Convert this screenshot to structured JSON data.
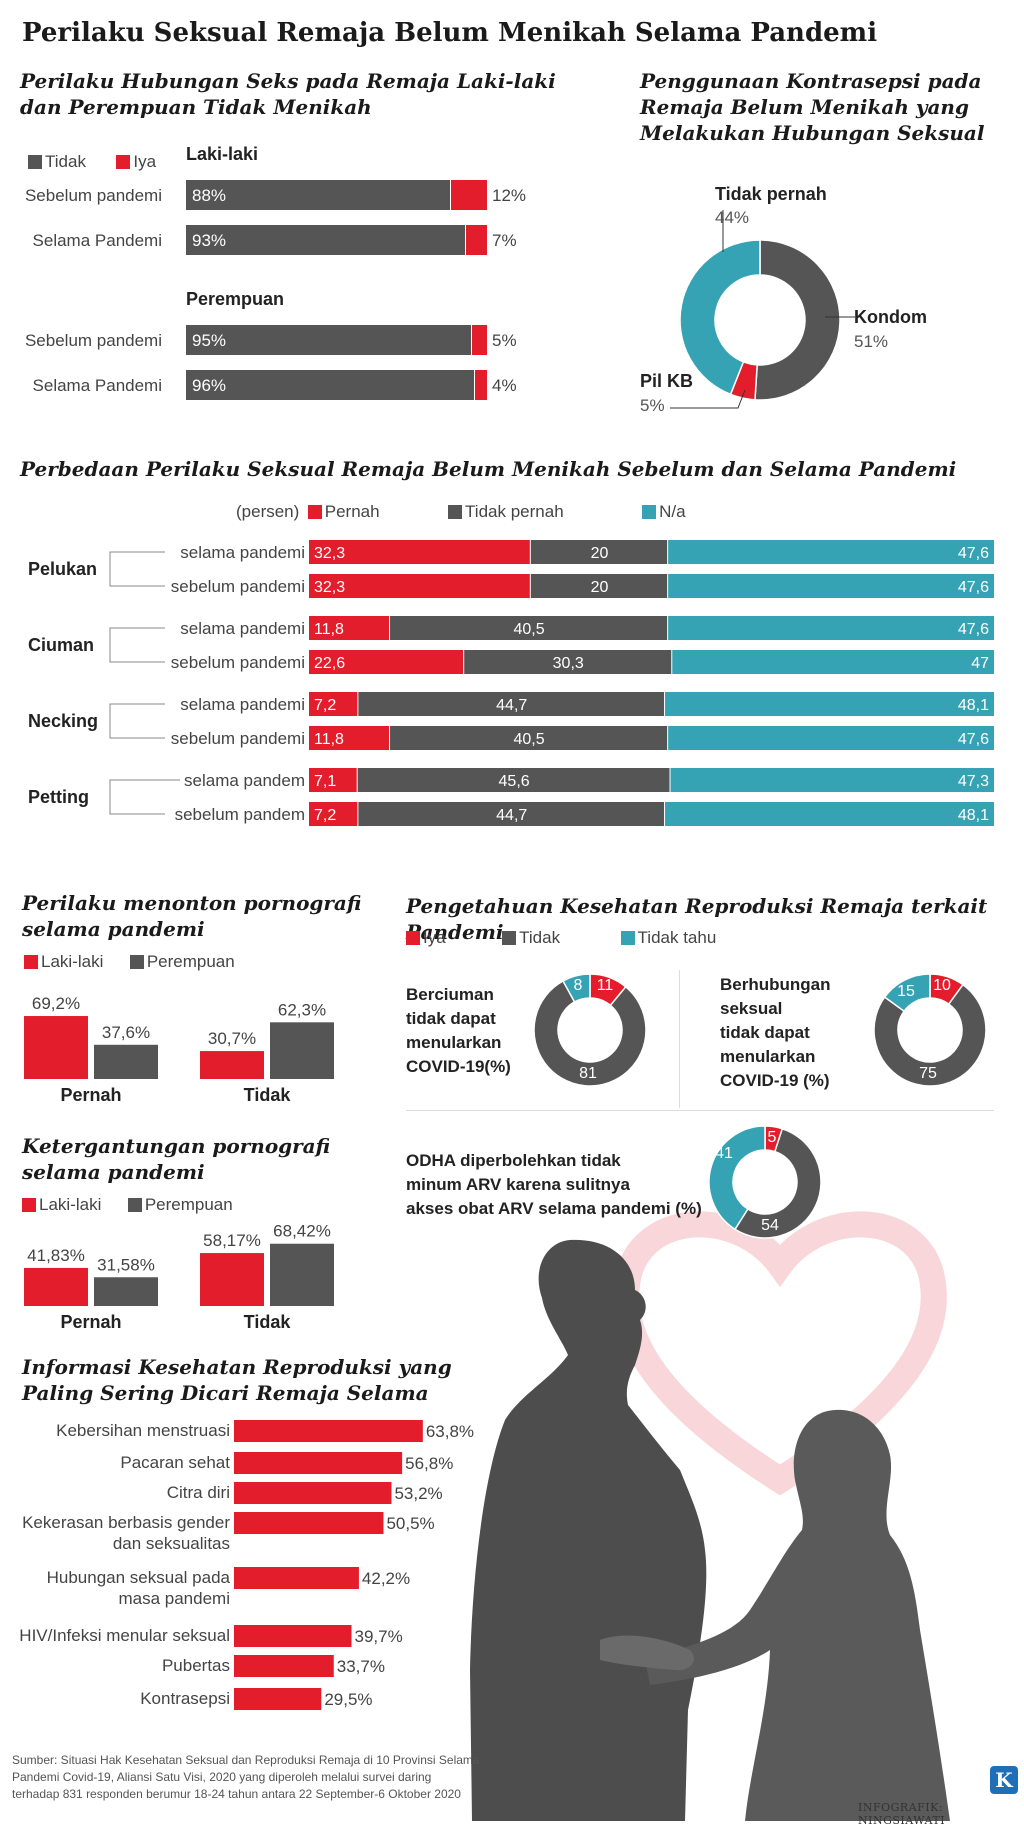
{
  "colors": {
    "red": "#e31d2b",
    "gray": "#555555",
    "teal": "#36a3b4",
    "text": "#333333"
  },
  "header": {
    "title": "Perilaku Seksual Remaja Belum Menikah Selama Pandemi"
  },
  "sec1": {
    "title_line1": "Perilaku Hubungan Seks pada Remaja Laki-laki",
    "title_line2": "dan Perempuan Tidak Menikah",
    "legend": [
      "Tidak",
      "Iya"
    ]
  },
  "sec2": {
    "title_line1": "Penggunaan Kontrasepsi pada",
    "title_line2": "Remaja Belum Menikah yang",
    "title_line3": "Melakukan Hubungan Seksual"
  },
  "sec3": {
    "title": "Perbedaan Perilaku Seksual Remaja Belum Menikah Sebelum dan Selama Pandemi",
    "unit": "(persen)",
    "legend": [
      "Pernah",
      "Tidak pernah",
      "N/a"
    ]
  },
  "sec4": {
    "title_line1": "Perilaku menonton pornografi",
    "title_line2": "selama pandemi",
    "legend": [
      "Laki-laki",
      "Perempuan"
    ]
  },
  "sec5": {
    "title_line1": "Ketergantungan pornografi",
    "title_line2": "selama pandemi",
    "legend": [
      "Laki-laki",
      "Perempuan"
    ]
  },
  "sec6": {
    "title": "Pengetahuan Kesehatan Reproduksi Remaja terkait Pandemi",
    "legend": [
      "Iya",
      "Tidak",
      "Tidak tahu"
    ]
  },
  "sec7": {
    "title_line1": "Informasi Kesehatan Reproduksi yang",
    "title_line2": "Paling Sering Dicari Remaja Selama"
  },
  "footer": {
    "source_line1": "Sumber: Situasi Hak Kesehatan Seksual dan Reproduksi Remaja di 10 Provinsi Selama",
    "source_line2": "Pandemi Covid-19, Aliansi Satu Visi, 2020 yang diperoleh melalui survei daring",
    "source_line3": "terhadap 831 responden berumur 18-24 tahun antara 22 September-6 Oktober 2020",
    "credit": "INFOGRAFIK: NINGSIAWATI",
    "logo": "K"
  },
  "chart_data": [
    {
      "id": "hubungan_seks",
      "type": "bar",
      "stacked": true,
      "orientation": "horizontal",
      "groups": [
        {
          "name": "Laki-laki",
          "rows": [
            {
              "label": "Sebelum pandemi",
              "tidak": 88,
              "iya": 12,
              "tidak_label": "88%",
              "iya_label": "12%"
            },
            {
              "label": "Selama Pandemi",
              "tidak": 93,
              "iya": 7,
              "tidak_label": "93%",
              "iya_label": "7%"
            }
          ]
        },
        {
          "name": "Perempuan",
          "rows": [
            {
              "label": "Sebelum pandemi",
              "tidak": 95,
              "iya": 5,
              "tidak_label": "95%",
              "iya_label": "5%"
            },
            {
              "label": "Selama Pandemi",
              "tidak": 96,
              "iya": 4,
              "tidak_label": "96%",
              "iya_label": "4%"
            }
          ]
        }
      ]
    },
    {
      "id": "kontrasepsi",
      "type": "pie",
      "donut": true,
      "slices": [
        {
          "name": "Kondom",
          "value": 51,
          "label": "51%"
        },
        {
          "name": "Pil KB",
          "value": 5,
          "label": "5%"
        },
        {
          "name": "Tidak pernah",
          "value": 44,
          "label": "44%"
        }
      ]
    },
    {
      "id": "perilaku_seksual",
      "type": "bar",
      "stacked": true,
      "orientation": "horizontal",
      "series": [
        "Pernah",
        "Tidak pernah",
        "N/a"
      ],
      "groups": [
        {
          "name": "Pelukan",
          "rows": [
            {
              "label": "selama pandemi",
              "values": [
                32.3,
                20,
                47.6
              ],
              "labels": [
                "32,3",
                "20",
                "47,6"
              ]
            },
            {
              "label": "sebelum pandemi",
              "values": [
                32.3,
                20,
                47.6
              ],
              "labels": [
                "32,3",
                "20",
                "47,6"
              ]
            }
          ]
        },
        {
          "name": "Ciuman",
          "rows": [
            {
              "label": "selama pandemi",
              "values": [
                11.8,
                40.5,
                47.6
              ],
              "labels": [
                "11,8",
                "40,5",
                "47,6"
              ]
            },
            {
              "label": "sebelum pandemi",
              "values": [
                22.6,
                30.3,
                47
              ],
              "labels": [
                "22,6",
                "30,3",
                "47"
              ]
            }
          ]
        },
        {
          "name": "Necking",
          "rows": [
            {
              "label": "selama pandemi",
              "values": [
                7.2,
                44.7,
                48.1
              ],
              "labels": [
                "7,2",
                "44,7",
                "48,1"
              ]
            },
            {
              "label": "sebelum pandemi",
              "values": [
                11.8,
                40.5,
                47.6
              ],
              "labels": [
                "11,8",
                "40,5",
                "47,6"
              ]
            }
          ]
        },
        {
          "name": "Petting",
          "rows": [
            {
              "label": "selama pandem",
              "values": [
                7.1,
                45.6,
                47.3
              ],
              "labels": [
                "7,1",
                "45,6",
                "47,3"
              ]
            },
            {
              "label": "sebelum pandem",
              "values": [
                7.2,
                44.7,
                48.1
              ],
              "labels": [
                "7,2",
                "44,7",
                "48,1"
              ]
            }
          ]
        }
      ]
    },
    {
      "id": "menonton_pornografi",
      "type": "bar",
      "categories": [
        "Pernah",
        "Tidak"
      ],
      "series": [
        {
          "name": "Laki-laki",
          "values": [
            69.2,
            30.7
          ],
          "labels": [
            "69,2%",
            "30,7%"
          ]
        },
        {
          "name": "Perempuan",
          "values": [
            37.6,
            62.3
          ],
          "labels": [
            "37,6%",
            "62,3%"
          ]
        }
      ],
      "ylim": [
        0,
        80
      ]
    },
    {
      "id": "ketergantungan_pornografi",
      "type": "bar",
      "categories": [
        "Pernah",
        "Tidak"
      ],
      "series": [
        {
          "name": "Laki-laki",
          "values": [
            41.83,
            58.17
          ],
          "labels": [
            "41,83%",
            "58,17%"
          ]
        },
        {
          "name": "Perempuan",
          "values": [
            31.58,
            68.42
          ],
          "labels": [
            "31,58%",
            "68,42%"
          ]
        }
      ],
      "ylim": [
        0,
        80
      ]
    },
    {
      "id": "pengetahuan_berciuman",
      "type": "pie",
      "donut": true,
      "title_lines": [
        "Berciuman",
        "tidak dapat",
        "menularkan",
        "COVID-19(%)"
      ],
      "slices": [
        {
          "name": "Iya",
          "value": 11,
          "label": "11"
        },
        {
          "name": "Tidak",
          "value": 81,
          "label": "81"
        },
        {
          "name": "Tidak tahu",
          "value": 8,
          "label": "8"
        }
      ]
    },
    {
      "id": "pengetahuan_berhubungan",
      "type": "pie",
      "donut": true,
      "title_lines": [
        "Berhubungan",
        "seksual",
        "tidak dapat",
        "menularkan",
        "COVID-19 (%)"
      ],
      "slices": [
        {
          "name": "Iya",
          "value": 10,
          "label": "10"
        },
        {
          "name": "Tidak",
          "value": 75,
          "label": "75"
        },
        {
          "name": "Tidak tahu",
          "value": 15,
          "label": "15"
        }
      ]
    },
    {
      "id": "pengetahuan_odha",
      "type": "pie",
      "donut": true,
      "title_lines": [
        "ODHA diperbolehkan tidak",
        "minum ARV karena sulitnya",
        "akses obat ARV selama pandemi (%)"
      ],
      "slices": [
        {
          "name": "Iya",
          "value": 5,
          "label": "5"
        },
        {
          "name": "Tidak",
          "value": 54,
          "label": "54"
        },
        {
          "name": "Tidak tahu",
          "value": 41,
          "label": "41"
        }
      ]
    },
    {
      "id": "informasi_dicari",
      "type": "bar",
      "orientation": "horizontal",
      "rows": [
        {
          "label": [
            "Kebersihan menstruasi"
          ],
          "value": 63.8,
          "value_label": "63,8%"
        },
        {
          "label": [
            "Pacaran sehat"
          ],
          "value": 56.8,
          "value_label": "56,8%"
        },
        {
          "label": [
            "Citra diri"
          ],
          "value": 53.2,
          "value_label": "53,2%"
        },
        {
          "label": [
            "Kekerasan berbasis gender",
            "dan seksualitas"
          ],
          "value": 50.5,
          "value_label": "50,5%"
        },
        {
          "label": [
            "Hubungan seksual pada",
            "masa pandemi"
          ],
          "value": 42.2,
          "value_label": "42,2%"
        },
        {
          "label": [
            "HIV/Infeksi menular seksual"
          ],
          "value": 39.7,
          "value_label": "39,7%"
        },
        {
          "label": [
            "Pubertas"
          ],
          "value": 33.7,
          "value_label": "33,7%"
        },
        {
          "label": [
            "Kontrasepsi"
          ],
          "value": 29.5,
          "value_label": "29,5%"
        }
      ]
    }
  ]
}
